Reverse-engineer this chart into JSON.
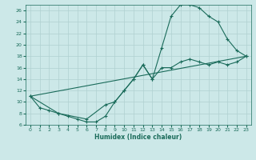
{
  "xlabel": "Humidex (Indice chaleur)",
  "xlim": [
    -0.5,
    23.5
  ],
  "ylim": [
    6,
    27
  ],
  "yticks": [
    6,
    8,
    10,
    12,
    14,
    16,
    18,
    20,
    22,
    24,
    26
  ],
  "xticks": [
    0,
    1,
    2,
    3,
    4,
    5,
    6,
    7,
    8,
    9,
    10,
    11,
    12,
    13,
    14,
    15,
    16,
    17,
    18,
    19,
    20,
    21,
    22,
    23
  ],
  "background_color": "#cce8e8",
  "grid_color": "#b0d0d0",
  "line_color": "#1a6b5a",
  "curve1_x": [
    0,
    1,
    2,
    3,
    4,
    5,
    6,
    7,
    8,
    9,
    10,
    11,
    12,
    13,
    14,
    15,
    16,
    17,
    18,
    19,
    20,
    21,
    22,
    23
  ],
  "curve1_y": [
    11,
    9,
    8.5,
    8,
    7.5,
    7,
    6.5,
    6.5,
    7.5,
    10,
    12,
    14,
    16.5,
    14,
    19.5,
    25,
    27,
    27,
    26.5,
    25,
    24,
    21,
    19,
    18
  ],
  "curve2_x": [
    0,
    3,
    6,
    8,
    9,
    10,
    11,
    12,
    13,
    14,
    15,
    16,
    17,
    18,
    19,
    20,
    21,
    22,
    23
  ],
  "curve2_y": [
    11,
    8,
    7,
    9.5,
    10,
    12,
    14,
    16.5,
    14,
    16,
    16,
    17,
    17.5,
    17,
    16.5,
    17,
    16.5,
    17,
    18
  ],
  "curve3_x": [
    0,
    23
  ],
  "curve3_y": [
    11,
    18
  ]
}
